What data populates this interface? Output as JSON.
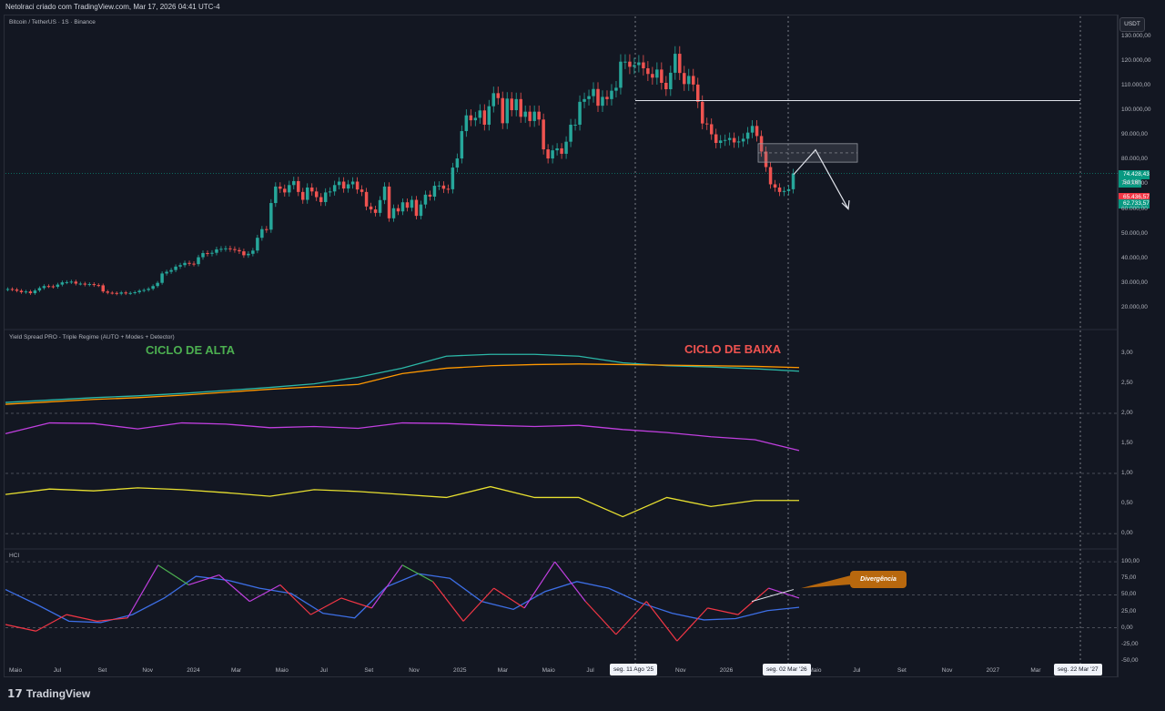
{
  "header": {
    "title": "Netolraci criado com TradingView.com, Mar 17, 2026 04:41 UTC-4"
  },
  "panes": {
    "price_label": "Bitcoin / TetherUS · 1S · Binance",
    "yield_label": "Yield Spread PRO - Triple Regime (AUTO + Modes + Detector)",
    "hci_label": "HCI"
  },
  "currency": "USDT",
  "annotations": {
    "bull": "CICLO DE ALTA",
    "bear": "CICLO DE BAIXA",
    "divergence": "Divergência"
  },
  "price_badges": {
    "last": "74.428,43",
    "countdown": "5d 16h",
    "mid": "65.436,57",
    "low": "62.733,57"
  },
  "brand": "TradingView",
  "colors": {
    "up": "#26a69a",
    "down": "#ef5350",
    "bull_text": "#4caf50",
    "bear_text": "#ef5350",
    "teal": "#2bb7a7",
    "orange": "#ff9800",
    "purple": "#c03fdf",
    "yellow": "#e8e030",
    "blue": "#3d6fe6",
    "red": "#f23645",
    "green": "#4caf50"
  },
  "chart_data": [
    {
      "type": "candlestick",
      "title": "Bitcoin / TetherUS · 1S · Binance",
      "ylabel": "USDT",
      "ylim": [
        14000,
        133000
      ],
      "y_ticks": [
        "130.000,00",
        "120.000,00",
        "110.000,00",
        "100.000,00",
        "90.000,00",
        "80.000,00",
        "70.000,00",
        "60.000,00",
        "50.000,00",
        "40.000,00",
        "30.000,00",
        "20.000,00"
      ],
      "x_ticks": [
        "Maio",
        "Jul",
        "Set",
        "Nov",
        "2024",
        "Mar",
        "Maio",
        "Jul",
        "Set",
        "Nov",
        "2025",
        "Mar",
        "Maio",
        "Jul",
        "Set",
        "Nov",
        "2026",
        "Mar",
        "Maio",
        "Jul",
        "Set",
        "Nov",
        "2027",
        "Mar",
        "Maio"
      ],
      "x_markers": [
        "seg. 11 Ago '25",
        "seg. 02 Mar '26",
        "seg. 22 Mar '27"
      ],
      "closes": [
        27500,
        27300,
        26800,
        26200,
        26500,
        25800,
        26900,
        27900,
        28700,
        28600,
        28400,
        29300,
        30200,
        30300,
        30500,
        29700,
        29700,
        29300,
        29500,
        29100,
        29000,
        26500,
        26000,
        25900,
        25600,
        26100,
        25700,
        25900,
        26200,
        26800,
        27100,
        27600,
        28700,
        30000,
        33800,
        34500,
        35200,
        36600,
        37200,
        38100,
        37800,
        37600,
        40400,
        42100,
        41800,
        42200,
        43600,
        43800,
        44000,
        43700,
        43300,
        42800,
        41200,
        41800,
        43100,
        48300,
        51800,
        51600,
        62400,
        69100,
        68200,
        66700,
        69700,
        71300,
        66900,
        63700,
        68700,
        67100,
        64800,
        62800,
        66700,
        67100,
        69700,
        71100,
        68300,
        70000,
        71100,
        67900,
        66900,
        61000,
        59800,
        58400,
        63600,
        69100,
        56200,
        60300,
        59000,
        62700,
        60500,
        63700,
        57200,
        61800,
        65800,
        65000,
        69400,
        69500,
        68200,
        68000,
        76800,
        80500,
        91600,
        98000,
        96000,
        97000,
        100000,
        94200,
        101700,
        107000,
        105000,
        94800,
        104800,
        100100,
        104600,
        97400,
        99500,
        95700,
        99500,
        96300,
        84200,
        80500,
        83800,
        84600,
        82400,
        87300,
        94200,
        94200,
        103500,
        104600,
        105800,
        108700,
        101900,
        105500,
        104600,
        108000,
        109200,
        119800,
        119800,
        117700,
        118400,
        119500,
        117100,
        114800,
        113300,
        116600,
        111200,
        108600,
        115300,
        123000,
        115200,
        110700,
        114000,
        110500,
        103500,
        94700,
        94400,
        90300,
        86800,
        87800,
        88000,
        88800,
        87000,
        87400,
        88500,
        91000,
        93700,
        89600,
        83300,
        77000,
        70000,
        68700,
        66900,
        67300,
        68000,
        74400
      ],
      "overlays": {
        "resistance_level": 104000,
        "zone": [
          79000,
          86500
        ],
        "projection_arrow": "down"
      }
    },
    {
      "type": "line",
      "title": "Yield Spread PRO - Triple Regime (AUTO + Modes + Detector)",
      "ylim": [
        -0.15,
        3.15
      ],
      "y_ticks": [
        "3,00",
        "2,50",
        "2,00",
        "1,50",
        "1,00",
        "0,50",
        "0,00"
      ],
      "series": [
        {
          "color": "teal",
          "values": [
            2.18,
            2.22,
            2.26,
            2.29,
            2.33,
            2.38,
            2.43,
            2.49,
            2.6,
            2.75,
            2.95,
            2.98,
            2.98,
            2.95,
            2.84,
            2.79,
            2.77,
            2.74,
            2.7
          ]
        },
        {
          "color": "orange",
          "values": [
            2.15,
            2.19,
            2.23,
            2.26,
            2.3,
            2.35,
            2.4,
            2.44,
            2.48,
            2.66,
            2.75,
            2.79,
            2.81,
            2.82,
            2.81,
            2.8,
            2.79,
            2.78,
            2.76
          ]
        },
        {
          "color": "purple",
          "values": [
            1.66,
            1.84,
            1.83,
            1.74,
            1.84,
            1.82,
            1.76,
            1.78,
            1.75,
            1.84,
            1.83,
            1.8,
            1.78,
            1.8,
            1.73,
            1.68,
            1.61,
            1.56,
            1.38
          ]
        },
        {
          "color": "yellow",
          "values": [
            0.65,
            0.74,
            0.71,
            0.76,
            0.73,
            0.68,
            0.62,
            0.73,
            0.7,
            0.65,
            0.6,
            0.78,
            0.6,
            0.6,
            0.28,
            0.6,
            0.45,
            0.55,
            0.55
          ]
        }
      ]
    },
    {
      "type": "line",
      "title": "HCI",
      "ylim": [
        -57,
        107
      ],
      "y_ticks": [
        "100,00",
        "75,00",
        "50,00",
        "25,00",
        "0,00",
        "-25,00",
        "-50,00"
      ],
      "series": [
        {
          "color": "blue",
          "values": [
            58,
            35,
            10,
            8,
            20,
            45,
            78,
            72,
            60,
            52,
            22,
            15,
            62,
            82,
            75,
            40,
            28,
            55,
            70,
            60,
            38,
            22,
            12,
            14,
            26,
            31
          ]
        },
        {
          "color": "oscillator",
          "values": [
            5,
            -5,
            20,
            10,
            15,
            95,
            65,
            80,
            40,
            65,
            20,
            45,
            30,
            95,
            70,
            10,
            60,
            30,
            100,
            40,
            -10,
            40,
            -20,
            30,
            20,
            60,
            45
          ]
        }
      ]
    }
  ]
}
